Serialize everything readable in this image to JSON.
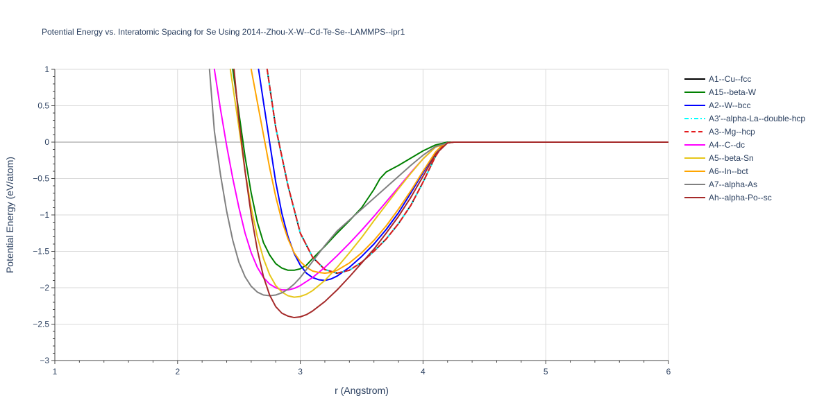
{
  "chart_data": {
    "type": "line",
    "title": "Potential Energy vs. Interatomic Spacing for Se Using 2014--Zhou-X-W--Cd-Te-Se--LAMMPS--ipr1",
    "xlabel": "r (Angstrom)",
    "ylabel": "Potential Energy (eV/atom)",
    "xlim": [
      1,
      6
    ],
    "ylim": [
      -3,
      1
    ],
    "xticks": [
      1,
      2,
      3,
      4,
      5,
      6
    ],
    "xtick_labels": [
      "1",
      "2",
      "3",
      "4",
      "5",
      "6"
    ],
    "yticks": [
      -3,
      -2.5,
      -2,
      -1.5,
      -1,
      -0.5,
      0,
      0.5,
      1
    ],
    "ytick_labels": [
      "−3",
      "−2.5",
      "−2",
      "−1.5",
      "−1",
      "−0.5",
      "0",
      "0.5",
      "1"
    ],
    "grid": true,
    "legend_position": "right",
    "series": [
      {
        "name": "A1--Cu--fcc",
        "color": "#000000",
        "dash": "solid",
        "x": [
          2.73,
          2.8,
          2.9,
          3.0,
          3.1,
          3.2,
          3.3,
          3.4,
          3.5,
          3.6,
          3.7,
          3.8,
          3.9,
          4.0,
          4.1,
          4.15,
          4.2,
          4.25,
          4.3,
          4.5,
          5.0,
          5.5,
          6.0
        ],
        "y": [
          1.0,
          0.2,
          -0.6,
          -1.25,
          -1.58,
          -1.75,
          -1.8,
          -1.76,
          -1.65,
          -1.5,
          -1.33,
          -1.12,
          -0.87,
          -0.55,
          -0.2,
          -0.07,
          -0.01,
          0,
          0,
          0,
          0,
          0,
          0
        ]
      },
      {
        "name": "A15--beta-W",
        "color": "#008000",
        "dash": "solid",
        "x": [
          2.45,
          2.5,
          2.55,
          2.6,
          2.65,
          2.7,
          2.75,
          2.8,
          2.85,
          2.9,
          2.95,
          3.0,
          3.05,
          3.1,
          3.2,
          3.3,
          3.4,
          3.5,
          3.6,
          3.65,
          3.7,
          3.8,
          3.9,
          4.0,
          4.1,
          4.2,
          4.25,
          4.3,
          4.5,
          5.0,
          5.5,
          6.0
        ],
        "y": [
          1.0,
          0.4,
          -0.2,
          -0.7,
          -1.1,
          -1.38,
          -1.55,
          -1.67,
          -1.73,
          -1.76,
          -1.76,
          -1.74,
          -1.69,
          -1.6,
          -1.43,
          -1.25,
          -1.08,
          -0.9,
          -0.65,
          -0.5,
          -0.41,
          -0.32,
          -0.22,
          -0.12,
          -0.04,
          0,
          0,
          0,
          0,
          0,
          0,
          0
        ]
      },
      {
        "name": "A2--W--bcc",
        "color": "#0000ff",
        "dash": "solid",
        "x": [
          2.66,
          2.7,
          2.75,
          2.8,
          2.85,
          2.9,
          2.95,
          3.0,
          3.05,
          3.1,
          3.15,
          3.2,
          3.25,
          3.3,
          3.4,
          3.5,
          3.6,
          3.7,
          3.8,
          3.9,
          4.0,
          4.1,
          4.15,
          4.2,
          4.25,
          4.3,
          4.5,
          5.0,
          5.5,
          6.0
        ],
        "y": [
          1.0,
          0.55,
          0.0,
          -0.55,
          -0.98,
          -1.3,
          -1.53,
          -1.69,
          -1.8,
          -1.86,
          -1.89,
          -1.9,
          -1.88,
          -1.84,
          -1.72,
          -1.57,
          -1.4,
          -1.2,
          -0.97,
          -0.7,
          -0.42,
          -0.15,
          -0.05,
          -0.01,
          0,
          0,
          0,
          0,
          0,
          0
        ]
      },
      {
        "name": "A3'--alpha-La--double-hcp",
        "color": "#00ffff",
        "dash": "dashdot",
        "x": [
          2.73,
          2.8,
          2.9,
          3.0,
          3.1,
          3.2,
          3.3,
          3.4,
          3.5,
          3.6,
          3.7,
          3.8,
          3.9,
          4.0,
          4.1,
          4.15,
          4.2,
          4.25,
          4.3,
          4.5,
          5.0,
          5.5,
          6.0
        ],
        "y": [
          1.0,
          0.2,
          -0.6,
          -1.25,
          -1.58,
          -1.75,
          -1.8,
          -1.76,
          -1.65,
          -1.5,
          -1.33,
          -1.12,
          -0.87,
          -0.55,
          -0.2,
          -0.07,
          -0.01,
          0,
          0,
          0,
          0,
          0,
          0
        ]
      },
      {
        "name": "A3--Mg--hcp",
        "color": "#e31a1c",
        "dash": "dash",
        "x": [
          2.73,
          2.8,
          2.9,
          3.0,
          3.1,
          3.2,
          3.3,
          3.4,
          3.5,
          3.6,
          3.7,
          3.8,
          3.9,
          4.0,
          4.1,
          4.15,
          4.2,
          4.25,
          4.3,
          4.5,
          5.0,
          5.5,
          6.0
        ],
        "y": [
          1.0,
          0.2,
          -0.6,
          -1.25,
          -1.58,
          -1.75,
          -1.8,
          -1.76,
          -1.65,
          -1.5,
          -1.33,
          -1.12,
          -0.87,
          -0.55,
          -0.2,
          -0.07,
          -0.01,
          0,
          0,
          0,
          0,
          0,
          0
        ]
      },
      {
        "name": "A4--C--dc",
        "color": "#ff00ff",
        "dash": "solid",
        "x": [
          2.3,
          2.35,
          2.4,
          2.45,
          2.5,
          2.55,
          2.6,
          2.65,
          2.7,
          2.75,
          2.8,
          2.85,
          2.9,
          2.95,
          3.0,
          3.1,
          3.2,
          3.3,
          3.4,
          3.5,
          3.6,
          3.7,
          3.8,
          3.9,
          4.0,
          4.1,
          4.2,
          4.25,
          4.3,
          4.5,
          5.0,
          5.5,
          6.0
        ],
        "y": [
          1.0,
          0.45,
          -0.05,
          -0.5,
          -0.9,
          -1.25,
          -1.52,
          -1.72,
          -1.86,
          -1.95,
          -2.0,
          -2.03,
          -2.03,
          -2.01,
          -1.97,
          -1.86,
          -1.72,
          -1.56,
          -1.39,
          -1.21,
          -1.02,
          -0.82,
          -0.62,
          -0.42,
          -0.23,
          -0.07,
          -0.01,
          0,
          0,
          0,
          0,
          0,
          0
        ]
      },
      {
        "name": "A5--beta-Sn",
        "color": "#e6c619",
        "dash": "solid",
        "x": [
          2.43,
          2.5,
          2.55,
          2.6,
          2.65,
          2.7,
          2.75,
          2.8,
          2.85,
          2.9,
          2.95,
          3.0,
          3.05,
          3.1,
          3.2,
          3.3,
          3.4,
          3.5,
          3.6,
          3.7,
          3.8,
          3.9,
          4.0,
          4.1,
          4.2,
          4.25,
          4.3,
          4.5,
          5.0,
          5.5,
          6.0
        ],
        "y": [
          1.0,
          0.2,
          -0.4,
          -0.9,
          -1.3,
          -1.6,
          -1.82,
          -1.97,
          -2.06,
          -2.11,
          -2.13,
          -2.12,
          -2.09,
          -2.04,
          -1.9,
          -1.72,
          -1.52,
          -1.31,
          -1.08,
          -0.86,
          -0.64,
          -0.43,
          -0.23,
          -0.07,
          -0.01,
          0,
          0,
          0,
          0,
          0,
          0
        ]
      },
      {
        "name": "A6--In--bct",
        "color": "#ffa500",
        "dash": "solid",
        "x": [
          2.6,
          2.65,
          2.7,
          2.75,
          2.8,
          2.85,
          2.9,
          2.95,
          3.0,
          3.05,
          3.1,
          3.15,
          3.2,
          3.25,
          3.3,
          3.4,
          3.5,
          3.6,
          3.7,
          3.8,
          3.9,
          4.0,
          4.1,
          4.15,
          4.2,
          4.25,
          4.3,
          4.5,
          5.0,
          5.5,
          6.0
        ],
        "y": [
          1.0,
          0.55,
          0.1,
          -0.35,
          -0.75,
          -1.08,
          -1.33,
          -1.52,
          -1.64,
          -1.72,
          -1.77,
          -1.79,
          -1.8,
          -1.79,
          -1.76,
          -1.66,
          -1.52,
          -1.35,
          -1.15,
          -0.92,
          -0.67,
          -0.4,
          -0.14,
          -0.05,
          -0.01,
          0,
          0,
          0,
          0,
          0,
          0
        ]
      },
      {
        "name": "A7--alpha-As",
        "color": "#808080",
        "dash": "solid",
        "x": [
          2.26,
          2.3,
          2.35,
          2.4,
          2.45,
          2.5,
          2.55,
          2.6,
          2.65,
          2.7,
          2.75,
          2.8,
          2.85,
          2.9,
          2.95,
          3.0,
          3.1,
          3.2,
          3.3,
          3.4,
          3.5,
          3.6,
          3.7,
          3.8,
          3.9,
          4.0,
          4.1,
          4.2,
          4.25,
          4.3,
          4.5,
          5.0,
          5.5,
          6.0
        ],
        "y": [
          1.0,
          0.15,
          -0.45,
          -0.95,
          -1.35,
          -1.65,
          -1.85,
          -1.98,
          -2.06,
          -2.1,
          -2.11,
          -2.1,
          -2.07,
          -2.02,
          -1.95,
          -1.86,
          -1.64,
          -1.42,
          -1.22,
          -1.07,
          -0.92,
          -0.77,
          -0.62,
          -0.47,
          -0.32,
          -0.18,
          -0.06,
          -0.01,
          0,
          0,
          0,
          0,
          0,
          0
        ]
      },
      {
        "name": "Ah--alpha-Po--sc",
        "color": "#a52a2a",
        "dash": "solid",
        "x": [
          2.46,
          2.5,
          2.55,
          2.6,
          2.65,
          2.7,
          2.75,
          2.8,
          2.85,
          2.9,
          2.95,
          3.0,
          3.05,
          3.1,
          3.2,
          3.3,
          3.4,
          3.5,
          3.6,
          3.7,
          3.8,
          3.9,
          4.0,
          4.1,
          4.2,
          4.25,
          4.3,
          4.5,
          5.0,
          5.5,
          6.0
        ],
        "y": [
          1.0,
          0.3,
          -0.4,
          -1.0,
          -1.48,
          -1.85,
          -2.1,
          -2.26,
          -2.35,
          -2.39,
          -2.41,
          -2.4,
          -2.37,
          -2.32,
          -2.19,
          -2.03,
          -1.85,
          -1.66,
          -1.47,
          -1.25,
          -1.02,
          -0.76,
          -0.47,
          -0.17,
          -0.01,
          0,
          0,
          0,
          0,
          0,
          0
        ]
      }
    ]
  }
}
